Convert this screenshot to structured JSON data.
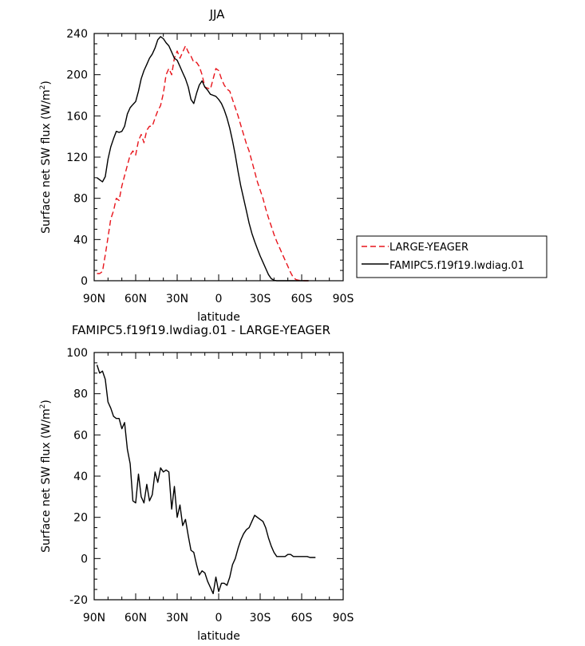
{
  "chart_data": [
    {
      "type": "line",
      "title": "JJA",
      "xlabel": "latitude",
      "ylabel_main": "Surface net SW flux (W/m",
      "ylabel_sup": "2",
      "ylabel_close": ")",
      "xlim": [
        90,
        -90
      ],
      "ylim": [
        0,
        240
      ],
      "xticks": [
        {
          "value": 90,
          "label": "90N"
        },
        {
          "value": 60,
          "label": "60N"
        },
        {
          "value": 30,
          "label": "30N"
        },
        {
          "value": 0,
          "label": "0"
        },
        {
          "value": -30,
          "label": "30S"
        },
        {
          "value": -60,
          "label": "60S"
        },
        {
          "value": -90,
          "label": "90S"
        }
      ],
      "yticks": [
        0,
        40,
        80,
        120,
        160,
        200,
        240
      ],
      "legend": {
        "placement": "right",
        "entries": [
          "LARGE-YEAGER",
          "FAMIPC5.f19f19.lwdiag.01"
        ]
      },
      "series": [
        {
          "name": "LARGE-YEAGER",
          "color": "#e8141b",
          "dash": "dashed",
          "points": [
            [
              88,
              7
            ],
            [
              86,
              7
            ],
            [
              84,
              9
            ],
            [
              82,
              25
            ],
            [
              80,
              42
            ],
            [
              78,
              60
            ],
            [
              76,
              68
            ],
            [
              74,
              80
            ],
            [
              72,
              78
            ],
            [
              70,
              92
            ],
            [
              68,
              102
            ],
            [
              66,
              112
            ],
            [
              64,
              122
            ],
            [
              62,
              126
            ],
            [
              60,
              122
            ],
            [
              58,
              136
            ],
            [
              56,
              142
            ],
            [
              54,
              134
            ],
            [
              52,
              146
            ],
            [
              50,
              150
            ],
            [
              48,
              150
            ],
            [
              46,
              158
            ],
            [
              44,
              165
            ],
            [
              42,
              170
            ],
            [
              40,
              182
            ],
            [
              38,
              200
            ],
            [
              36,
              206
            ],
            [
              34,
              200
            ],
            [
              32,
              216
            ],
            [
              30,
              223
            ],
            [
              28,
              216
            ],
            [
              26,
              222
            ],
            [
              24,
              228
            ],
            [
              22,
              222
            ],
            [
              20,
              218
            ],
            [
              18,
              212
            ],
            [
              16,
              212
            ],
            [
              14,
              208
            ],
            [
              12,
              200
            ],
            [
              10,
              188
            ],
            [
              8,
              187
            ],
            [
              6,
              186
            ],
            [
              4,
              196
            ],
            [
              2,
              206
            ],
            [
              0,
              204
            ],
            [
              -2,
              196
            ],
            [
              -4,
              190
            ],
            [
              -6,
              186
            ],
            [
              -8,
              184
            ],
            [
              -10,
              176
            ],
            [
              -12,
              168
            ],
            [
              -14,
              160
            ],
            [
              -16,
              151
            ],
            [
              -18,
              142
            ],
            [
              -20,
              133
            ],
            [
              -22,
              126
            ],
            [
              -24,
              116
            ],
            [
              -26,
              106
            ],
            [
              -28,
              96
            ],
            [
              -30,
              88
            ],
            [
              -32,
              80
            ],
            [
              -34,
              70
            ],
            [
              -36,
              61
            ],
            [
              -38,
              53
            ],
            [
              -40,
              45
            ],
            [
              -42,
              38
            ],
            [
              -44,
              32
            ],
            [
              -46,
              26
            ],
            [
              -48,
              20
            ],
            [
              -50,
              14
            ],
            [
              -52,
              8
            ],
            [
              -54,
              3
            ],
            [
              -56,
              1
            ],
            [
              -58,
              0.5
            ],
            [
              -60,
              0.2
            ],
            [
              -62,
              0
            ],
            [
              -65,
              0
            ]
          ]
        },
        {
          "name": "FAMIPC5.f19f19.lwdiag.01",
          "color": "#000000",
          "dash": "solid",
          "points": [
            [
              88,
              100
            ],
            [
              86,
              98
            ],
            [
              84,
              96
            ],
            [
              82,
              101
            ],
            [
              80,
              118
            ],
            [
              78,
              130
            ],
            [
              76,
              138
            ],
            [
              74,
              145
            ],
            [
              72,
              144
            ],
            [
              70,
              145
            ],
            [
              68,
              150
            ],
            [
              66,
              162
            ],
            [
              64,
              168
            ],
            [
              62,
              171
            ],
            [
              60,
              174
            ],
            [
              58,
              184
            ],
            [
              56,
              196
            ],
            [
              54,
              204
            ],
            [
              52,
              210
            ],
            [
              50,
              216
            ],
            [
              48,
              220
            ],
            [
              46,
              226
            ],
            [
              44,
              234
            ],
            [
              42,
              237
            ],
            [
              40,
              235
            ],
            [
              38,
              231
            ],
            [
              36,
              228
            ],
            [
              34,
              222
            ],
            [
              32,
              216
            ],
            [
              30,
              214
            ],
            [
              28,
              208
            ],
            [
              26,
              202
            ],
            [
              24,
              196
            ],
            [
              22,
              188
            ],
            [
              20,
              176
            ],
            [
              18,
              172
            ],
            [
              16,
              182
            ],
            [
              14,
              190
            ],
            [
              12,
              194
            ],
            [
              10,
              188
            ],
            [
              8,
              185
            ],
            [
              6,
              181
            ],
            [
              4,
              180
            ],
            [
              2,
              179
            ],
            [
              0,
              176
            ],
            [
              -2,
              172
            ],
            [
              -4,
              166
            ],
            [
              -6,
              158
            ],
            [
              -8,
              148
            ],
            [
              -10,
              136
            ],
            [
              -12,
              122
            ],
            [
              -14,
              106
            ],
            [
              -16,
              92
            ],
            [
              -18,
              80
            ],
            [
              -20,
              68
            ],
            [
              -22,
              56
            ],
            [
              -24,
              46
            ],
            [
              -26,
              38
            ],
            [
              -28,
              31
            ],
            [
              -30,
              24
            ],
            [
              -32,
              18
            ],
            [
              -34,
              12
            ],
            [
              -36,
              6
            ],
            [
              -38,
              2
            ],
            [
              -40,
              0.5
            ],
            [
              -42,
              0
            ],
            [
              -50,
              0
            ],
            [
              -60,
              0
            ],
            [
              -65,
              0
            ]
          ]
        }
      ]
    },
    {
      "type": "line",
      "title": "FAMIPC5.f19f19.lwdiag.01 - LARGE-YEAGER",
      "xlabel": "latitude",
      "ylabel_main": "Surface net SW flux (W/m",
      "ylabel_sup": "2",
      "ylabel_close": ")",
      "xlim": [
        90,
        -90
      ],
      "ylim": [
        -20,
        100
      ],
      "xticks": [
        {
          "value": 90,
          "label": "90N"
        },
        {
          "value": 60,
          "label": "60N"
        },
        {
          "value": 30,
          "label": "30N"
        },
        {
          "value": 0,
          "label": "0"
        },
        {
          "value": -30,
          "label": "30S"
        },
        {
          "value": -60,
          "label": "60S"
        },
        {
          "value": -90,
          "label": "90S"
        }
      ],
      "yticks": [
        -20,
        0,
        20,
        40,
        60,
        80,
        100
      ],
      "series": [
        {
          "color": "#000000",
          "dash": "solid",
          "points": [
            [
              88,
              94
            ],
            [
              86,
              90
            ],
            [
              84,
              91
            ],
            [
              82,
              87
            ],
            [
              80,
              76
            ],
            [
              78,
              73
            ],
            [
              76,
              69
            ],
            [
              74,
              68
            ],
            [
              72,
              68
            ],
            [
              70,
              63
            ],
            [
              68,
              66
            ],
            [
              66,
              53
            ],
            [
              64,
              46
            ],
            [
              62,
              28
            ],
            [
              60,
              27
            ],
            [
              58,
              41
            ],
            [
              56,
              30
            ],
            [
              54,
              27
            ],
            [
              52,
              36
            ],
            [
              50,
              28
            ],
            [
              48,
              31
            ],
            [
              46,
              42
            ],
            [
              44,
              37
            ],
            [
              42,
              44
            ],
            [
              40,
              42
            ],
            [
              38,
              43
            ],
            [
              36,
              42
            ],
            [
              34,
              24
            ],
            [
              32,
              35
            ],
            [
              30,
              20
            ],
            [
              28,
              26
            ],
            [
              26,
              16
            ],
            [
              24,
              19
            ],
            [
              22,
              11
            ],
            [
              20,
              4
            ],
            [
              18,
              3
            ],
            [
              16,
              -3
            ],
            [
              14,
              -8
            ],
            [
              12,
              -6
            ],
            [
              10,
              -7
            ],
            [
              8,
              -11
            ],
            [
              6,
              -14
            ],
            [
              4,
              -17
            ],
            [
              2,
              -9
            ],
            [
              0,
              -16
            ],
            [
              -2,
              -12
            ],
            [
              -4,
              -12
            ],
            [
              -6,
              -13
            ],
            [
              -8,
              -9
            ],
            [
              -10,
              -3
            ],
            [
              -12,
              0
            ],
            [
              -14,
              5
            ],
            [
              -16,
              9
            ],
            [
              -18,
              12
            ],
            [
              -20,
              14
            ],
            [
              -22,
              15
            ],
            [
              -24,
              18
            ],
            [
              -26,
              21
            ],
            [
              -28,
              20
            ],
            [
              -30,
              19
            ],
            [
              -32,
              18
            ],
            [
              -34,
              15
            ],
            [
              -36,
              10
            ],
            [
              -38,
              6
            ],
            [
              -40,
              3
            ],
            [
              -42,
              1
            ],
            [
              -44,
              1
            ],
            [
              -46,
              1
            ],
            [
              -48,
              1
            ],
            [
              -50,
              2
            ],
            [
              -52,
              2
            ],
            [
              -54,
              1
            ],
            [
              -56,
              1
            ],
            [
              -58,
              1
            ],
            [
              -60,
              1
            ],
            [
              -62,
              1
            ],
            [
              -64,
              1
            ],
            [
              -66,
              0.5
            ],
            [
              -68,
              0.5
            ],
            [
              -70,
              0.5
            ]
          ]
        }
      ]
    }
  ]
}
